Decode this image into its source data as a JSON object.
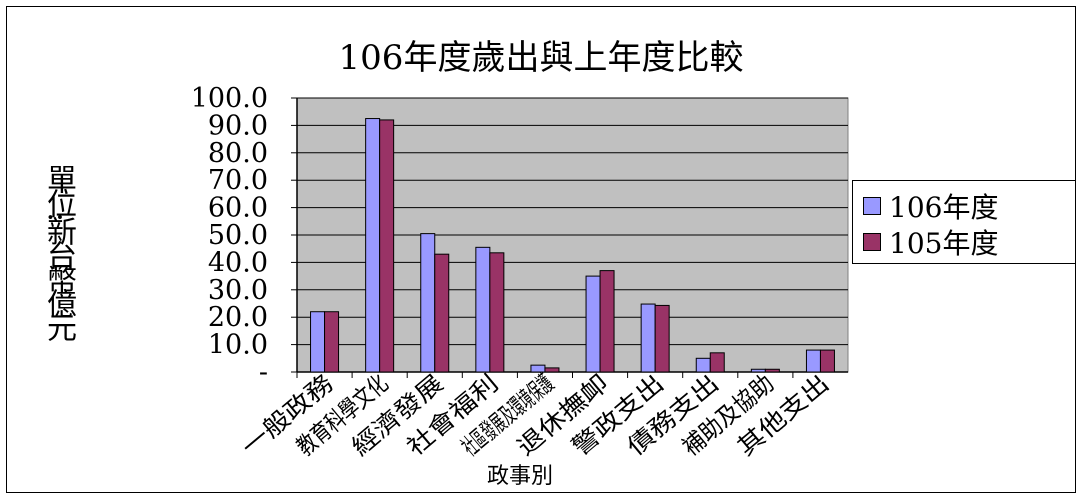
{
  "chart_data": {
    "type": "bar",
    "title": "106年度歲出與上年度比較",
    "xlabel": "政事別",
    "ylabel": "單位:新台幣億元",
    "categories": [
      "一般政務",
      "教育科學文化",
      "經濟發展",
      "社會福利",
      "社區發展及環境保護",
      "退休撫卹",
      "警政支出",
      "債務支出",
      "補助及協助",
      "其他支出"
    ],
    "series": [
      {
        "name": "106年度",
        "values": [
          22.0,
          92.5,
          50.5,
          45.5,
          2.5,
          35.0,
          24.8,
          5.0,
          1.0,
          8.0
        ],
        "color": "#9999ff"
      },
      {
        "name": "105年度",
        "values": [
          22.0,
          92.0,
          43.0,
          43.5,
          1.5,
          37.0,
          24.3,
          7.0,
          1.0,
          8.0
        ],
        "color": "#993366"
      }
    ],
    "ylim": [
      0,
      100
    ],
    "yticks": [
      "-",
      "10.0",
      "20.0",
      "30.0",
      "40.0",
      "50.0",
      "60.0",
      "70.0",
      "80.0",
      "90.0",
      "100.0"
    ],
    "grid": true,
    "legend": "right",
    "plot_background": "#c0c0c0"
  }
}
